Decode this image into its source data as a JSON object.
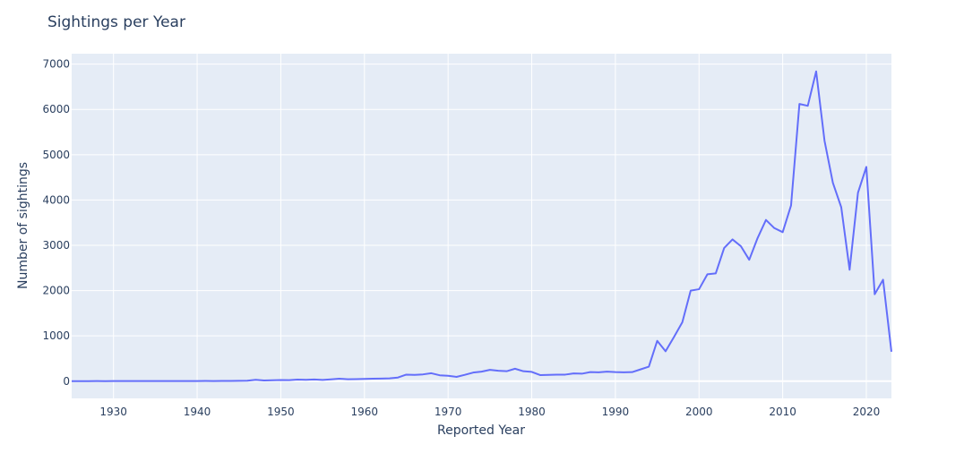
{
  "chart_data": {
    "type": "line",
    "title": "Sightings per Year",
    "xlabel": "Reported Year",
    "ylabel": "Number of sightings",
    "xlim": [
      1925,
      2023
    ],
    "ylim": [
      -380,
      7230
    ],
    "xticks": [
      1930,
      1940,
      1950,
      1960,
      1970,
      1980,
      1990,
      2000,
      2010,
      2020
    ],
    "yticks": [
      0,
      1000,
      2000,
      3000,
      4000,
      5000,
      6000,
      7000
    ],
    "grid": true,
    "legend": "none",
    "series": [
      {
        "color": "#636efa",
        "x": [
          1925,
          1926,
          1927,
          1928,
          1929,
          1930,
          1931,
          1932,
          1933,
          1934,
          1935,
          1936,
          1937,
          1938,
          1939,
          1940,
          1941,
          1942,
          1943,
          1944,
          1945,
          1946,
          1947,
          1948,
          1949,
          1950,
          1951,
          1952,
          1953,
          1954,
          1955,
          1956,
          1957,
          1958,
          1959,
          1960,
          1961,
          1962,
          1963,
          1964,
          1965,
          1966,
          1967,
          1968,
          1969,
          1970,
          1971,
          1972,
          1973,
          1974,
          1975,
          1976,
          1977,
          1978,
          1979,
          1980,
          1981,
          1982,
          1983,
          1984,
          1985,
          1986,
          1987,
          1988,
          1989,
          1990,
          1991,
          1992,
          1993,
          1994,
          1995,
          1996,
          1997,
          1998,
          1999,
          2000,
          2001,
          2002,
          2003,
          2004,
          2005,
          2006,
          2007,
          2008,
          2009,
          2010,
          2011,
          2012,
          2013,
          2014,
          2015,
          2016,
          2017,
          2018,
          2019,
          2020,
          2021,
          2022,
          2023
        ],
        "y": [
          1,
          1,
          1,
          2,
          1,
          2,
          2,
          2,
          3,
          2,
          3,
          3,
          3,
          4,
          3,
          4,
          5,
          4,
          5,
          6,
          8,
          10,
          30,
          15,
          20,
          25,
          22,
          35,
          30,
          38,
          28,
          40,
          55,
          42,
          45,
          50,
          55,
          58,
          62,
          80,
          145,
          140,
          150,
          175,
          130,
          120,
          95,
          140,
          190,
          210,
          250,
          230,
          220,
          275,
          220,
          205,
          135,
          140,
          145,
          145,
          170,
          165,
          200,
          195,
          210,
          200,
          195,
          200,
          260,
          320,
          890,
          660,
          975,
          1300,
          2000,
          2030,
          2360,
          2380,
          2940,
          3130,
          2980,
          2680,
          3160,
          3560,
          3380,
          3290,
          3880,
          6120,
          6080,
          6840,
          5310,
          4380,
          3840,
          2460,
          4160,
          4730,
          1920,
          2240,
          650
        ]
      }
    ]
  }
}
